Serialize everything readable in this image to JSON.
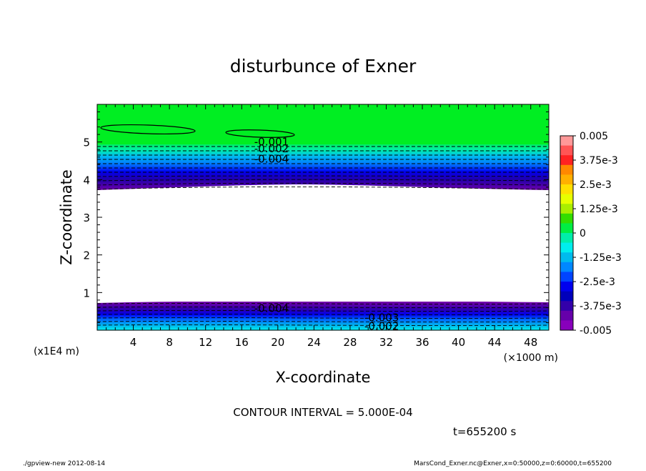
{
  "chart_data": {
    "type": "contour",
    "title": "disturbunce of Exner",
    "xlabel": "X-coordinate",
    "ylabel": "Z-coordinate",
    "x_unit": "(×1000 m)",
    "y_unit": "(x1E4 m)",
    "xlim": [
      0,
      50
    ],
    "ylim": [
      0,
      6
    ],
    "x_ticks": [
      4,
      8,
      12,
      16,
      20,
      24,
      28,
      32,
      36,
      40,
      44,
      48
    ],
    "y_ticks": [
      1,
      2,
      3,
      4,
      5
    ],
    "contour_interval_text": "CONTOUR INTERVAL = 5.000E-04",
    "time_text": "t=655200 s",
    "colorbar": {
      "labels": [
        "0.005",
        "3.75e-3",
        "2.5e-3",
        "1.25e-3",
        "0",
        "-1.25e-3",
        "-2.5e-3",
        "-3.75e-3",
        "-0.005"
      ],
      "colors": [
        "#ff9999",
        "#ff5555",
        "#ff2222",
        "#ff8800",
        "#ffb000",
        "#ffe000",
        "#e8ff00",
        "#aaee00",
        "#33dd00",
        "#00ee44",
        "#00eeaa",
        "#00eeee",
        "#00bbee",
        "#0088ff",
        "#0044ff",
        "#0000ee",
        "#0000bb",
        "#3300aa",
        "#6600aa",
        "#8800bb"
      ]
    },
    "contour_labels": [
      {
        "text": "-0.001",
        "x": 19.3,
        "z": 5.0
      },
      {
        "text": "-0.002",
        "x": 19.3,
        "z": 4.82
      },
      {
        "text": "-0.004",
        "x": 19.3,
        "z": 4.55
      },
      {
        "text": "-0.004",
        "x": 19.3,
        "z": 0.58
      },
      {
        "text": "-0.003",
        "x": 31.5,
        "z": 0.33
      },
      {
        "text": "-0.002",
        "x": 31.5,
        "z": 0.1
      }
    ]
  },
  "footer": {
    "left": "./gpview-new   2012-08-14",
    "right": "MarsCond_Exner.nc@Exner,x=0:50000,z=0:60000,t=655200"
  }
}
